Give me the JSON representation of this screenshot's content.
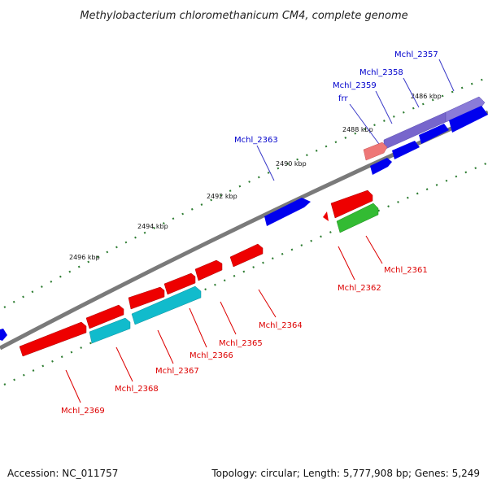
{
  "title": "Methylobacterium chloromethanicum CM4, complete genome",
  "footer": {
    "accession": "Accession: NC_011757",
    "summary": "Topology: circular; Length: 5,777,908 bp; Genes: 5,249"
  },
  "scale_ticks": [
    "2486 kbp",
    "2488 kbp",
    "2490 kbp",
    "2492 kbp",
    "2494 kbp",
    "2496 kbp"
  ],
  "colors": {
    "backbone": "#808080",
    "tick_dot": "#2e7d32",
    "label_forward": "#0000cc",
    "label_reverse": "#dd0000",
    "gene_blue": "#0000ee",
    "gene_purple": "#7766cc",
    "gene_salmon": "#ee7777",
    "gene_red": "#ee0000",
    "gene_green": "#33bb33",
    "gene_cyan": "#11bbcc"
  },
  "genes_forward": [
    {
      "label": "Mchl_2357",
      "color": "gene_purple"
    },
    {
      "label": "Mchl_2358",
      "color": "gene_blue"
    },
    {
      "label": "Mchl_2359",
      "color": "gene_blue"
    },
    {
      "label": "frr",
      "color": "gene_salmon"
    },
    {
      "label": "Mchl_2363",
      "color": "gene_blue"
    }
  ],
  "genes_reverse": [
    {
      "label": "Mchl_2361",
      "color": "gene_green"
    },
    {
      "label": "Mchl_2362",
      "color": "gene_red"
    },
    {
      "label": "Mchl_2364",
      "color": "gene_red"
    },
    {
      "label": "Mchl_2365",
      "color": "gene_red"
    },
    {
      "label": "Mchl_2366",
      "color": "gene_cyan"
    },
    {
      "label": "Mchl_2367",
      "color": "gene_red"
    },
    {
      "label": "Mchl_2368",
      "color": "gene_cyan"
    },
    {
      "label": "Mchl_2369",
      "color": "gene_red"
    }
  ]
}
